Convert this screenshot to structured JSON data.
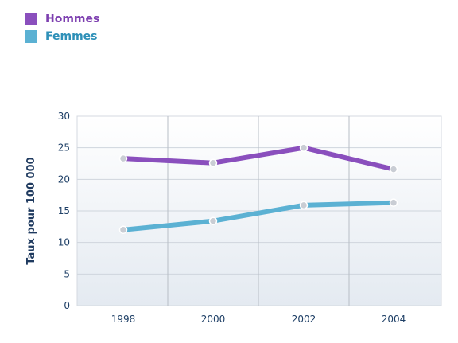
{
  "chart_data": {
    "type": "line",
    "x": [
      "1998",
      "2000",
      "2002",
      "2004"
    ],
    "series": [
      {
        "name": "Hommes",
        "values": [
          23.3,
          22.6,
          25.0,
          21.6
        ],
        "color": "#8a4fbd"
      },
      {
        "name": "Femmes",
        "values": [
          12.0,
          13.4,
          15.9,
          16.3
        ],
        "color": "#5bb1d3"
      }
    ],
    "ylabel": "Taux pour 100 000",
    "xlabel": "",
    "ylim": [
      0,
      30
    ],
    "yticks": [
      "0",
      "5",
      "10",
      "15",
      "20",
      "25",
      "30"
    ],
    "grid": true,
    "legend": "top-left"
  }
}
